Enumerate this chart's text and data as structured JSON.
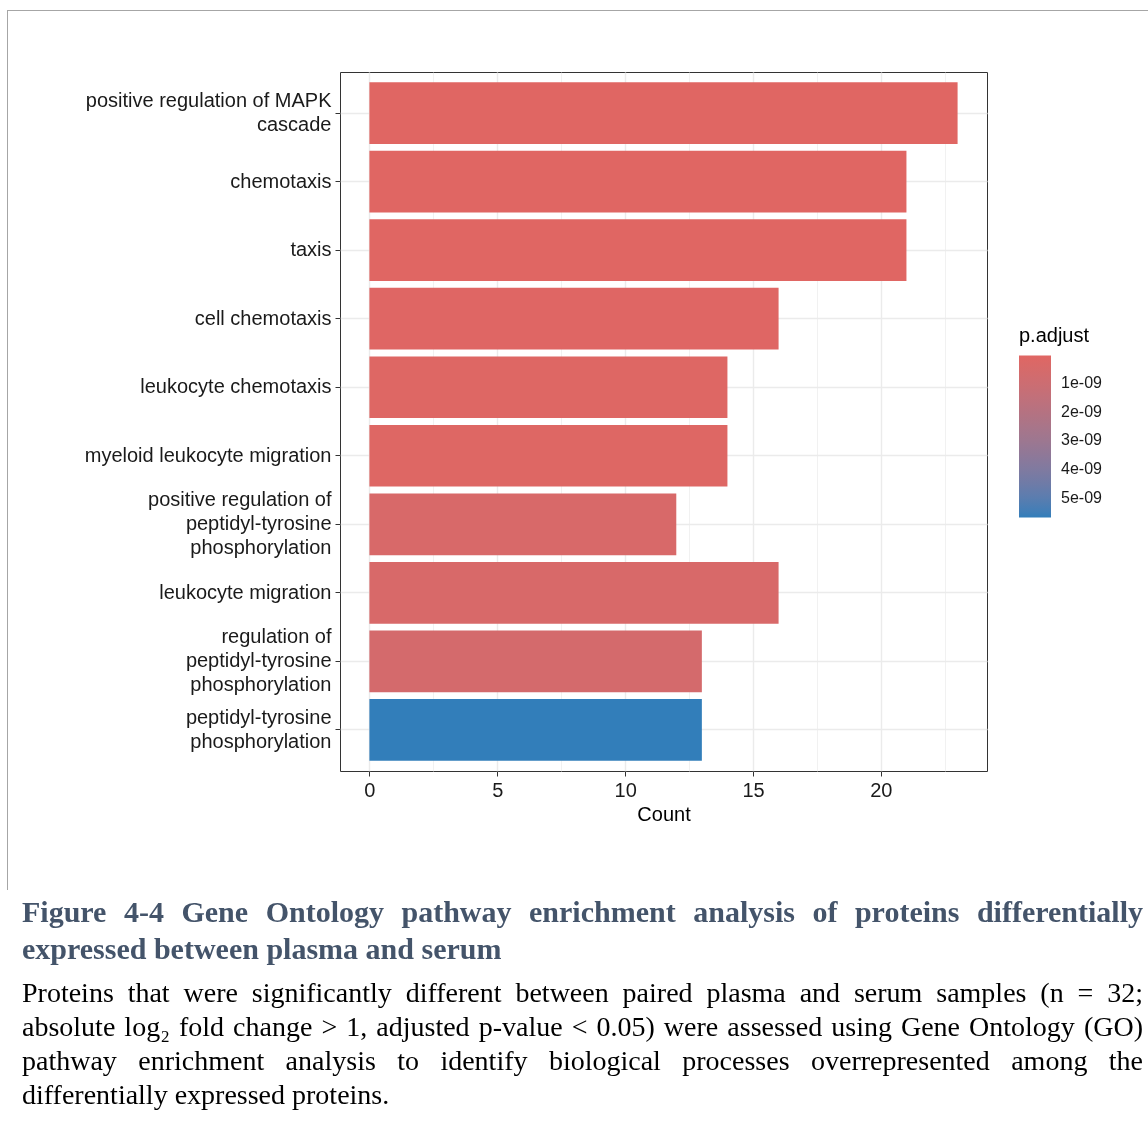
{
  "chart_data": {
    "type": "bar",
    "orientation": "horizontal",
    "title": "Figure 4-4 Gene Ontology pathway enrichment analysis of proteins differentially expressed between plasma and serum",
    "annotations": [
      "Proteins that were significantly different between paired plasma and serum samples (n = 32; absolute log₂ fold change > 1, adjusted p-value < 0.05) were assessed using Gene Ontology (GO) pathway enrichment analysis to identify biological processes overrepresented among the differentially expressed proteins."
    ],
    "xlabel": "Count",
    "categories": [
      "positive regulation of MAPK\ncascade",
      "chemotaxis",
      "taxis",
      "cell chemotaxis",
      "leukocyte chemotaxis",
      "myeloid leukocyte migration",
      "positive regulation of\npeptidyl-tyrosine\nphosphorylation",
      "leukocyte migration",
      "regulation of\npeptidyl-tyrosine\nphosphorylation",
      "peptidyl-tyrosine\nphosphorylation"
    ],
    "values": [
      23,
      21,
      21,
      16,
      14,
      14,
      12,
      16,
      13,
      13
    ],
    "cvalues": [
      2e-11,
      3e-11,
      4e-11,
      6e-11,
      1e-10,
      1e-10,
      4e-10,
      4e-10,
      6e-10,
      5.7e-09
    ],
    "clabel": "p.adjust",
    "clim": [
      2e-11,
      5.7e-09
    ],
    "cticks": [
      {
        "value": 1e-09,
        "label": "1e-09"
      },
      {
        "value": 2e-09,
        "label": "2e-09"
      },
      {
        "value": 3e-09,
        "label": "3e-09"
      },
      {
        "value": 4e-09,
        "label": "4e-09"
      },
      {
        "value": 5e-09,
        "label": "5e-09"
      }
    ],
    "xlim": [
      -1.15,
      24.15
    ],
    "xticks": [
      0,
      {
        "value": 2.5,
        "label": null
      },
      5,
      {
        "value": 7.5,
        "label": null
      },
      10,
      {
        "value": 12.5,
        "label": null
      },
      15,
      {
        "value": 17.5,
        "label": null
      },
      20,
      {
        "value": 22.5,
        "label": null
      }
    ],
    "grid": true
  }
}
